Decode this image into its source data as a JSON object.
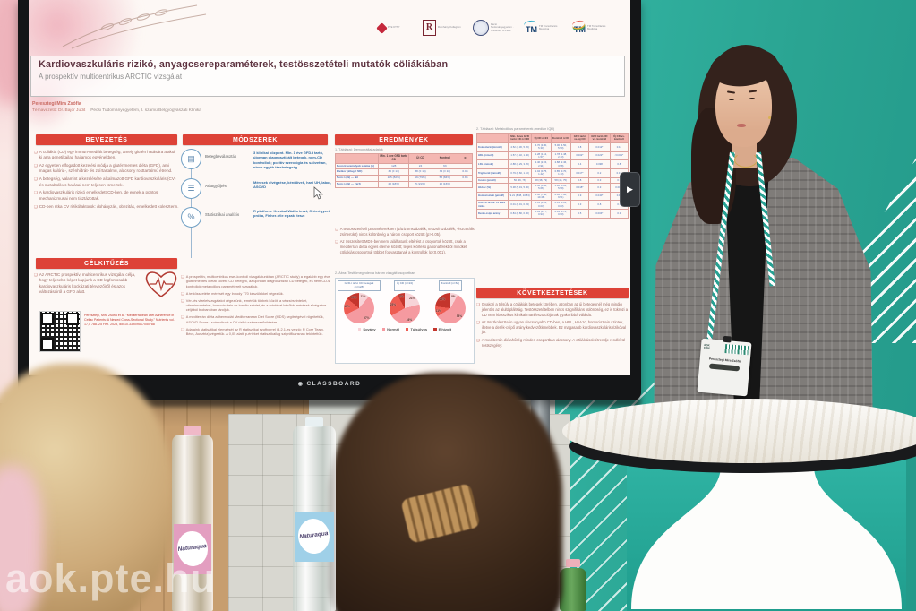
{
  "watermark": "aok.pte.hu",
  "screen": {
    "brand": "CLASSBOARD",
    "nav_arrow": "▶"
  },
  "poster": {
    "bullet_glyph": "❑",
    "logos": [
      "PTE KTTP",
      "Romhányi Kollégium",
      "Pécsi Tudományegyetem · University of Pécs",
      "TM Transzlációs Medicina",
      "TM Transzlációs Medicina"
    ],
    "title": "Kardiovaszkuláris rizikó, anyagcsereparaméterek, testösszetételi mutatók cöliákiában",
    "subtitle": "A prospektív multicentrikus ARCTIC vizsgálat",
    "author": "Peresztegi Mira Zsófia",
    "supervisor": "Témavezető: Dr. Bajor Judit",
    "affiliation": "Pécsi Tudományegyetem, I. számú Belgyógyászati Klinika",
    "bevezetes": {
      "heading": "BEVEZETÉS",
      "bullets": [
        "A cöliákia (CD) egy immun-mediált betegség, amely glutén hatására alakul ki arra genetikailag hajlamos egyénekben.",
        "Az egyetlen elfogadott kezelési módja a gluténmentes diéta (GFD), ami magas kalória-, szénhidrát- és zsírtartalmú, alacsony rosttartalmú étrend.",
        "A betegség, valamint a kezelésére alkalmazott GFD kardiovaszkuláris (CV) és metabolikus hatásai nem teljesen ismertek.",
        "A kardiovaszkuláris rizikó emelkedett CD-ben, de ennek a pontos mechanizmusai nem tisztázottak.",
        "CD-ben ritka CV rizikófaktorok: dohányzás, obezitás, emelkedett koleszterin."
      ]
    },
    "celkituzes": {
      "heading": "CÉLKITŰZÉS",
      "bullets": [
        "Az ARCTIC prospektív, multicentrikus vizsgálat célja, hogy teljesebb képet kapjunk a CD legfontosabb kardiovaszkuláris kockázati tényezőiről és azok változásairól a GFD alatt."
      ],
      "citation": "Peresztegi, Mira Zsófia et al. “Mediterranean Diet Adherence in Celiac Patients: A Nested Cross-Sectional Study.” Nutrients vol. 17,5 788. 25 Feb. 2025, doi:10.3390/nu17050788"
    },
    "modszerek": {
      "heading": "MÓDSZEREK",
      "steps": [
        {
          "icon": "▤",
          "icon_name": "clipboard-icon",
          "label": "Betegbeválasztás",
          "desc": "3 klinikai központ. Min. 1 éve GFD-t tartó, újonnan diagnosztizált betegek, nem-CD kontrollok; pozitív szerológia és szövettan, nincs egyéb társbetegség"
        },
        {
          "icon": "☰",
          "icon_name": "data-collection-icon",
          "label": "Adatgyűjtés",
          "desc": "Mérések elvégzése, kérdőívek, hasi UH, labor, ASCVD"
        },
        {
          "icon": "%",
          "icon_name": "statistics-icon",
          "label": "Statisztikai analízis",
          "desc": "R platform: Kruskal-Wallis teszt, Chi-négyzet próba, Fisher-féle egzakt teszt"
        }
      ],
      "bullets": [
        "A prospektív, multicentrikus eset-kontroll vizsgálatunkban (ARCTIC study) a legalább egy éve gluténmentes diétát követő CD betegek, az újonnan diagnosztizált CD betegek, és nem CD-s kontrollok metabolikus paramétereit vizsgáltuk.",
        "A testösszetétel mérését egy Inbody 770 készülékkel végeztük.",
        "Vér- és vizeletvizsgálatot végeztünk, lemértük többek között a vérzsírszinteket, vitaminszinteket, homocisztein és inzulin szintet, és a mintákat későbbi mérések elvégzése céljából biobankban tároljuk.",
        "A mediterrán diéta adherenciát Mediterranean Diet Score (MDS) segítségével rögzítettük, ASCVD Score-t számoltunk a CV rizikó számszerűsítésére.",
        "Adataink statisztikai elemzését az R statisztikai szoftverrel (4.2.1-es verzió; R Core Team, Bécs, Ausztria) végeztük. A 0,05 alatti p-értéket statisztikailag szignifikánsnak tekintettük."
      ]
    },
    "eredmenyek": {
      "heading": "EREDMÉNYEK",
      "table1_caption": "1. Táblázat: Demográfiai adatok",
      "table1": {
        "headers": [
          "",
          "Min. 1 éve GFD tartó CD",
          "Új CD",
          "Kontroll",
          "p"
        ],
        "rows": [
          [
            "Bevont személyek száma (n)",
            "128",
            "24",
            "63",
            ""
          ],
          [
            "Életkor (átlag ± SD)",
            "36 (± 13)",
            "38 (± 13)",
            "32 (± 11)",
            "0.08"
          ],
          [
            "Nem n (%) — Nő",
            "105 (82%)",
            "19 (79%)",
            "53 (84%)",
            "0.83"
          ],
          [
            "Nem n (%) — Férfi",
            "23 (18%)",
            "5 (21%)",
            "10 (16%)",
            ""
          ]
        ]
      },
      "bullets": [
        "A testösszetételi paraméterekben (vázizomszázalék, testzsírszázalék, viszcerális zsírterület) nincs különbség a három csoport között (p>0.05).",
        "Az összesített MDS-ben nem találhatunk eltérést a csoportok között, csak a mediterrán diéta egyes elemei között; teljes kiőrlésű gabonafélékből mindkét cöliákiás csoportnál többet fogyasztanak a kontrollok (p<0.001)."
      ],
      "figure_caption": "2. Ábra: Testtömegindex a három vizsgált csoportban"
    },
    "table2_caption": "2. Táblázat: Metabolikus paraméterek (medián IQR)",
    "table2": {
      "headers": [
        "",
        "Min. 1 éve GFD tartó CD n=128",
        "Új CD n=24",
        "Kontroll n=63",
        "GFD tartó vs. új CD",
        "GFD tartó CD vs. kontroll",
        "Új CD vs. kontroll"
      ],
      "rows": [
        [
          "Koleszterin (mmol/l)",
          "4.52 (4.30, 5.20)",
          "4.70 (3.80, 5.30)",
          "5.00 (4.50, 5.50)",
          "0.8",
          "0.012*",
          "0.11"
        ],
        [
          "HDL (mmol/l)",
          "1.57 (1.32, 1.86)",
          "1.28 (1.12, 1.57)",
          "1.78 (1.48, 2.13)",
          "0.002*",
          "0.022*",
          "<0.001*"
        ],
        [
          "LDL (mmol/l)",
          "2.88 (2.29, 3.26)",
          "2.46 (2.24, 2.91)",
          "2.88 (2.46, 3.58)",
          "0.4",
          "0.098",
          "0.8"
        ],
        [
          "Triglicerid (mmol/l)",
          "0.79 (0.60, 1.10)",
          "1.04 (0.75, 1.42)",
          "0.85 (0.70, 1.13)",
          "0.017*",
          "0.2",
          "0.13"
        ],
        [
          "Inzulin (pmol/l)",
          "50 (36, 76)",
          "58 (38, 79)",
          "58 (44, 75)",
          "0.8",
          "0.3",
          "0.7"
        ],
        [
          "HbA1c (%)",
          "5.38 (5.19, 5.90)",
          "5.45 (5.36, 5.66)",
          "5.30 (5.16, 5.59)",
          "0.018*",
          "0.3",
          "0.001*"
        ],
        [
          "Homocisztein (µmol/l)",
          "9.21 (8.38, 10.83)",
          "8.30 (7.38, 10.46)",
          "8.02 (7.08, 9.51)",
          "0.9",
          "0.040*",
          "0.11"
        ],
        [
          "ASCVD Score: 10 éves rizikó",
          "0.01 (0.01, 0.03)",
          "0.01 (0.01, 0.03)",
          "0.01 (0.01, 0.03)",
          "0.3",
          "0.8",
          "0.3"
        ],
        [
          "Derék-csípő arány",
          "0.84 (0.80, 0.90)",
          "0.83 (0.77, 0.94)",
          "0.81 (0.76, 0.90)",
          "0.5",
          "0.004*",
          "0.3"
        ]
      ]
    },
    "kovetkeztetesek": {
      "heading": "KÖVETKEZTETÉSEK",
      "bullets": [
        "Gyakori a túlsúly a cöliákiás betegek körében, azonban az új betegeknél még mindig jelentős az alultápláltság. Testösszetételben nincs szignifikáns különbség, ez is tükrözi a CD nem klasszikus klinikai manifesztációjának gyakoribbá válását.",
        "Az összkoleszterin ugyan alacsonyabb CD-ben, a HDL, HbA1c, homocisztein szintek, illetve a derék-csípő arány kedvezőtlenebbek. Ez magasabb kardiovaszkuláris rizikóval jár.",
        "A mediterrán diétahűség minden csoportban alacsony. A cöliákiások étrendje rendkívül rostszegény."
      ]
    }
  },
  "chart_data": [
    {
      "type": "pie",
      "title": "GFD-t tartó CD betegek (n=128)",
      "labels": [
        "Sovány",
        "Normál",
        "Túlsúlyos",
        "Elhízott"
      ],
      "values": [
        11,
        57,
        18,
        14
      ],
      "colors": [
        "#f7d4d8",
        "#f59aa0",
        "#ee5c52",
        "#c4352c"
      ]
    },
    {
      "type": "pie",
      "title": "Új CD (n=24)",
      "labels": [
        "Sovány",
        "Normál",
        "Túlsúlyos",
        "Elhízott"
      ],
      "values": [
        21,
        46,
        25,
        8
      ],
      "colors": [
        "#f7d4d8",
        "#f59aa0",
        "#ee5c52",
        "#c4352c"
      ]
    },
    {
      "type": "pie",
      "title": "Kontroll (n=63)",
      "labels": [
        "Sovány",
        "Normál",
        "Túlsúlyos",
        "Elhízott"
      ],
      "values": [
        8,
        58,
        11,
        23
      ],
      "colors": [
        "#f7d4d8",
        "#f59aa0",
        "#ee5c52",
        "#c4352c"
      ]
    }
  ],
  "legend": [
    "Sovány",
    "Normál",
    "Túlsúlyos",
    "Elhízott"
  ],
  "badge": {
    "name": "Peresztegi Mira Zsófia"
  },
  "bottles": {
    "brand": "Naturaqua"
  }
}
